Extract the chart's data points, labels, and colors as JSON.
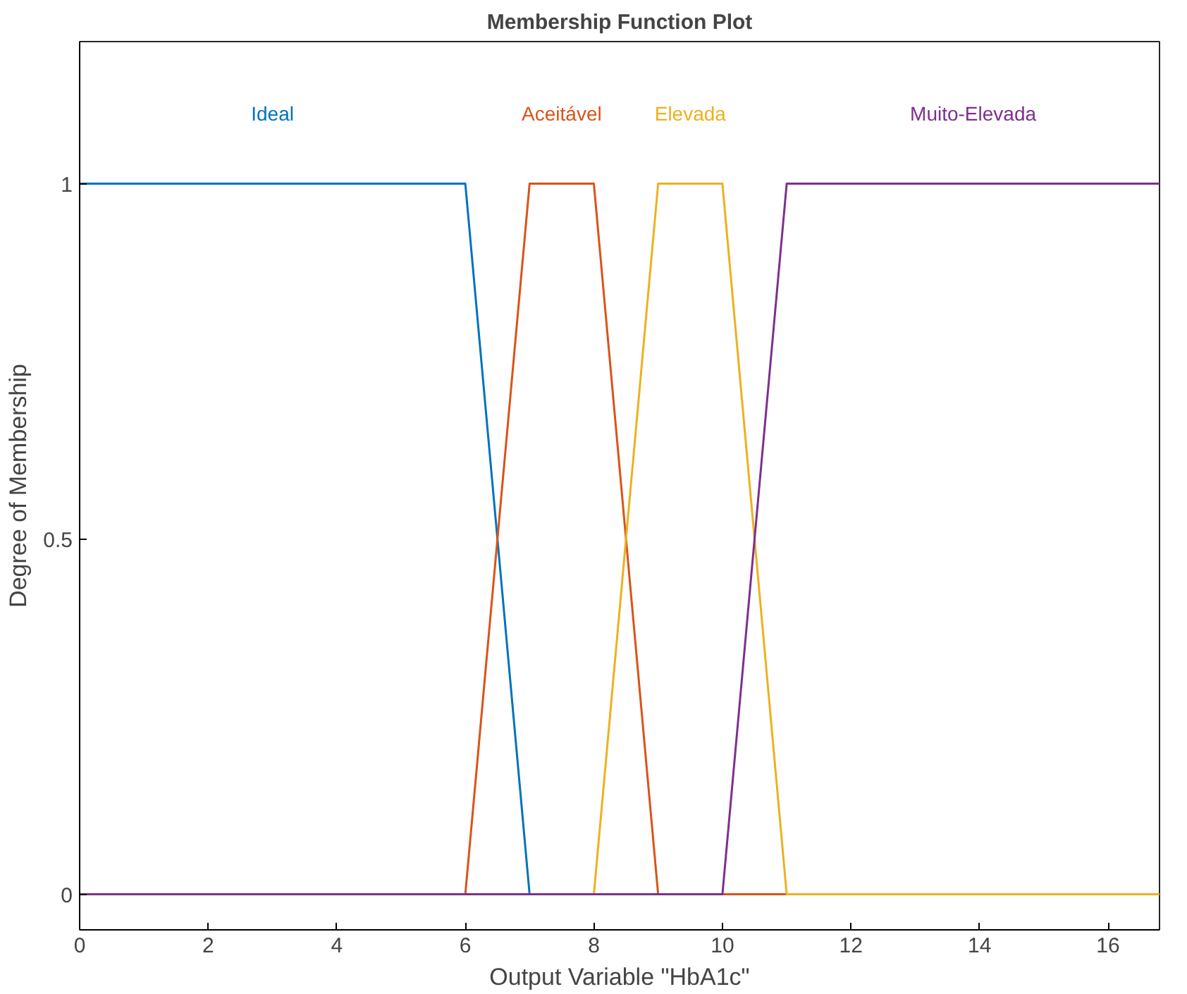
{
  "chart_data": {
    "type": "line",
    "title": "Membership Function Plot",
    "xlabel": "Output Variable \"HbA1c\"",
    "ylabel": "Degree of Membership",
    "series": [
      {
        "name": "Ideal",
        "color": "#0072bd",
        "x": [
          0,
          6,
          7,
          16.8
        ],
        "values": [
          1,
          1,
          0,
          0
        ]
      },
      {
        "name": "Aceitável",
        "color": "#d95319",
        "x": [
          0,
          6,
          7,
          8,
          9,
          16.8
        ],
        "values": [
          0,
          0,
          1,
          1,
          0,
          0
        ]
      },
      {
        "name": "Elevada",
        "color": "#edb120",
        "x": [
          0,
          8,
          9,
          10,
          11,
          16.8
        ],
        "values": [
          0,
          0,
          1,
          1,
          0,
          0
        ]
      },
      {
        "name": "Muito-Elevada",
        "color": "#7e2f8e",
        "x": [
          0,
          10,
          11,
          16.8
        ],
        "values": [
          0,
          0,
          1,
          1
        ]
      }
    ],
    "xlim": [
      0,
      16.8
    ],
    "ylim": [
      -0.05,
      1.2
    ],
    "xticks": [
      0,
      2,
      4,
      6,
      8,
      10,
      12,
      14,
      16
    ],
    "yticks": [
      0,
      0.5,
      1
    ],
    "grid": false,
    "marker": "none",
    "line_style": "solid"
  }
}
